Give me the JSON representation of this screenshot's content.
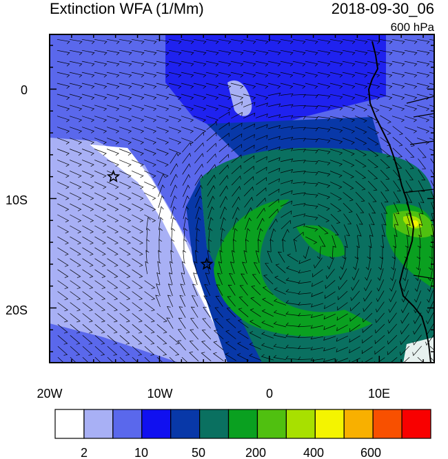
{
  "title": "Extinction WFA (1/Mm)",
  "date": "2018-09-30_06",
  "level": "600 hPa",
  "x_ticks": [
    "20W",
    "10W",
    "0",
    "10E"
  ],
  "y_ticks": [
    "0",
    "10S",
    "20S"
  ],
  "colorbar": {
    "colors": [
      "#ffffff",
      "#a8b0f5",
      "#5a68ec",
      "#1010f0",
      "#0838a8",
      "#0a7060",
      "#0aa020",
      "#50c010",
      "#a8e000",
      "#f4f400",
      "#f8b000",
      "#f85000",
      "#f80000"
    ],
    "labels": [
      "2",
      "10",
      "50",
      "200",
      "400",
      "600"
    ]
  },
  "markers": [
    {
      "name": "star-marker-1",
      "lon": -14.2,
      "lat": -8.0
    },
    {
      "name": "star-marker-2",
      "lon": -5.7,
      "lat": -16.0
    }
  ],
  "map_extent": {
    "lon": [
      -20,
      15
    ],
    "lat": [
      -25,
      5
    ]
  }
}
